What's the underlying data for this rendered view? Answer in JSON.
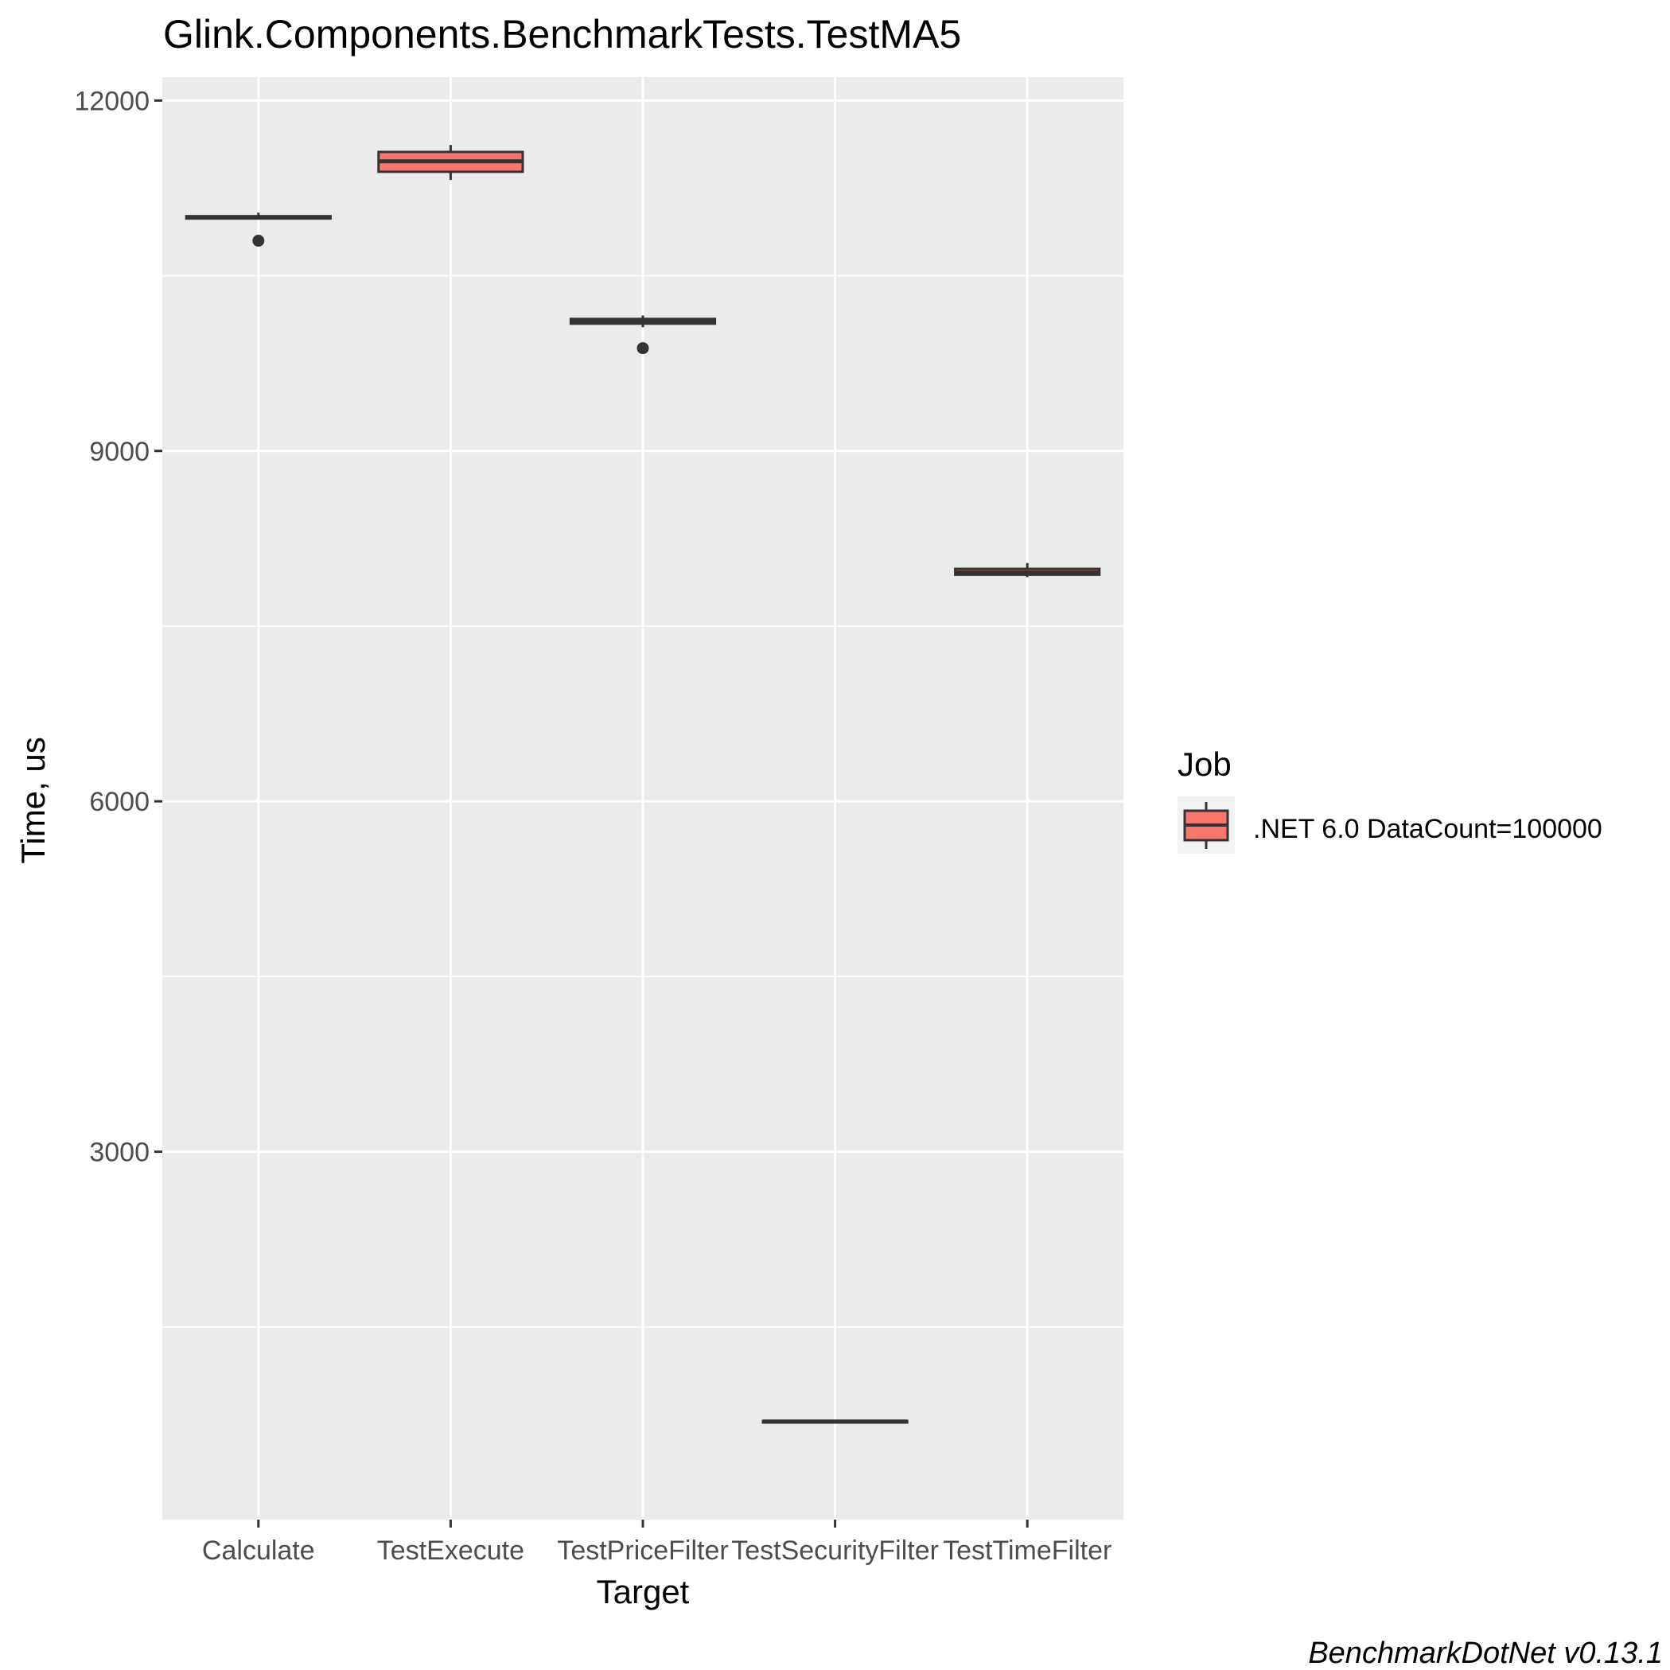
{
  "chart_data": {
    "type": "boxplot",
    "title": "Glink.Components.BenchmarkTests.TestMA5",
    "xlabel": "Target",
    "ylabel": "Time, us",
    "categories": [
      "Calculate",
      "TestExecute",
      "TestPriceFilter",
      "TestSecurityFilter",
      "TestTimeFilter"
    ],
    "ylim": [
      -150,
      12200
    ],
    "y_ticks": [
      3000,
      6000,
      9000,
      12000
    ],
    "y_minor_ticks": [
      1500,
      4500,
      7500,
      10500
    ],
    "grid": true,
    "legend_position": "right",
    "series": [
      {
        "name": ".NET 6.0 DataCount=100000",
        "color": "#F8766D",
        "boxes": [
          {
            "category": "Calculate",
            "whisker_low": 10990,
            "q1": 10990,
            "median": 11000,
            "q3": 11010,
            "whisker_high": 11040,
            "outliers": [
              10800
            ]
          },
          {
            "category": "TestExecute",
            "whisker_low": 11320,
            "q1": 11390,
            "median": 11480,
            "q3": 11560,
            "whisker_high": 11620,
            "outliers": []
          },
          {
            "category": "TestPriceFilter",
            "whisker_low": 10060,
            "q1": 10090,
            "median": 10110,
            "q3": 10130,
            "whisker_high": 10160,
            "outliers": [
              9880
            ]
          },
          {
            "category": "TestSecurityFilter",
            "whisker_low": 680,
            "q1": 685,
            "median": 690,
            "q3": 695,
            "whisker_high": 700,
            "outliers": []
          },
          {
            "category": "TestTimeFilter",
            "whisker_low": 7920,
            "q1": 7940,
            "median": 7960,
            "q3": 7990,
            "whisker_high": 8040,
            "outliers": []
          }
        ]
      }
    ]
  },
  "legend": {
    "title": "Job",
    "items": [
      ".NET 6.0 DataCount=100000"
    ]
  },
  "caption": "BenchmarkDotNet v0.13.1",
  "colors": {
    "panel_bg": "#EBEBEB",
    "grid": "#FFFFFF",
    "box_stroke": "#333333",
    "box_fill": "#F8766D",
    "axis_text": "#4D4D4D"
  }
}
